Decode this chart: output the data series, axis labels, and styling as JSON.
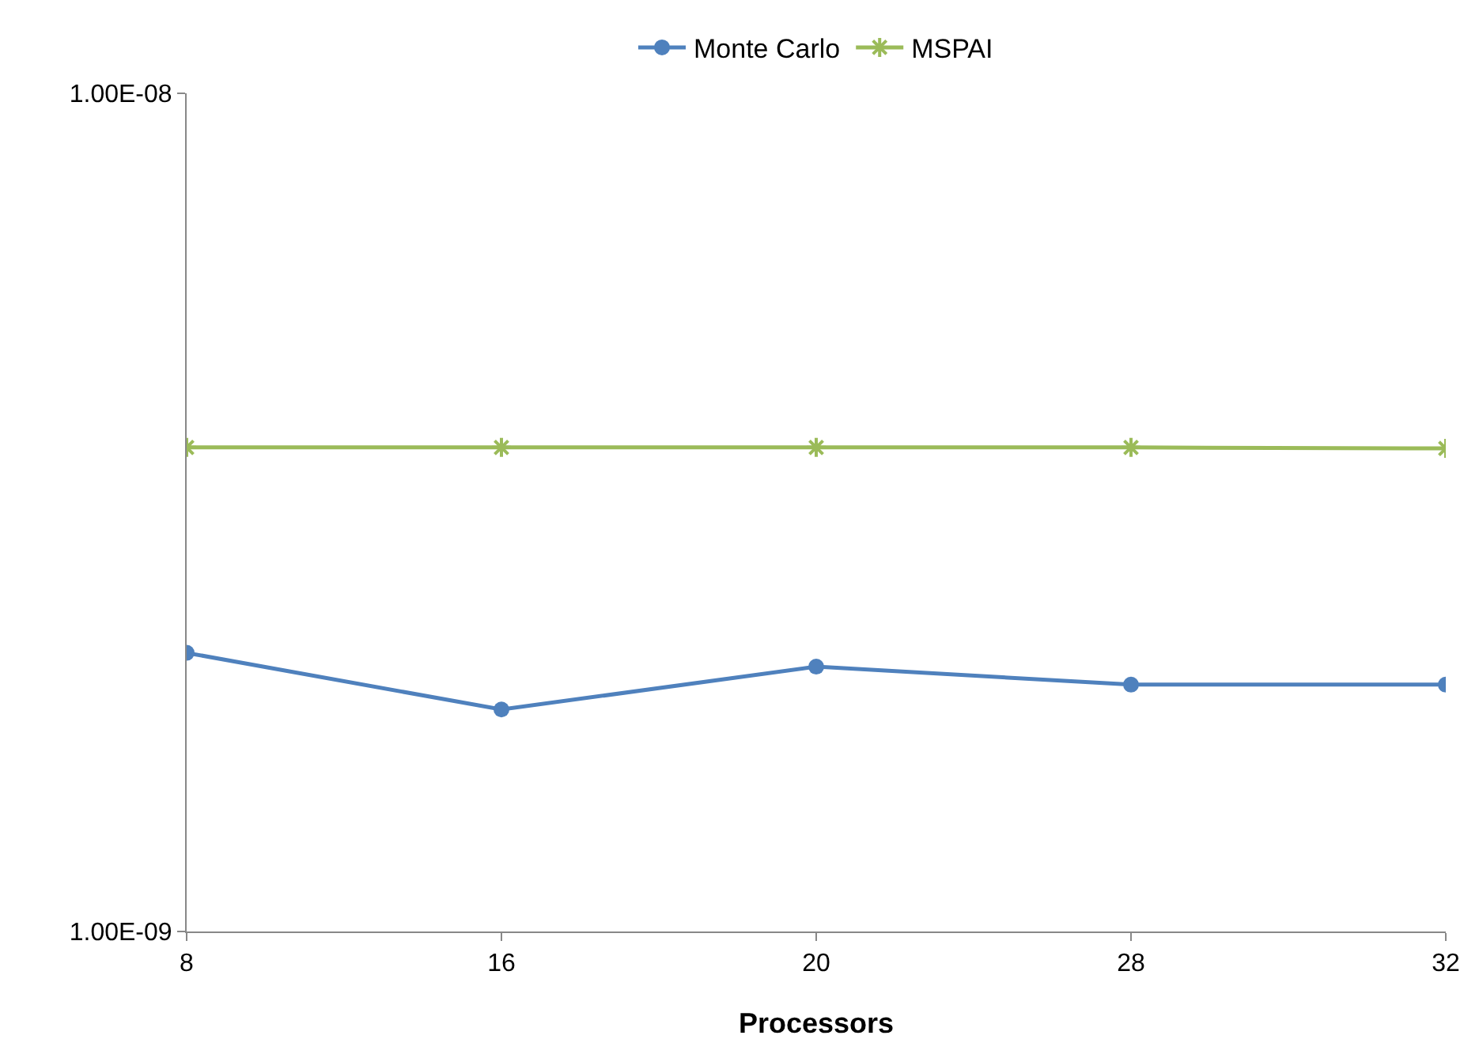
{
  "chart_data": {
    "type": "line",
    "xlabel": "Processors",
    "categories": [
      "8",
      "16",
      "20",
      "28",
      "32"
    ],
    "series": [
      {
        "name": "Monte Carlo",
        "color": "#4f81bd",
        "marker": "circle",
        "values": [
          2.15e-09,
          1.84e-09,
          2.07e-09,
          1.97e-09,
          1.97e-09
        ]
      },
      {
        "name": "MSPAI",
        "color": "#9bbb59",
        "marker": "cross",
        "values": [
          3.78e-09,
          3.78e-09,
          3.78e-09,
          3.78e-09,
          3.77e-09
        ]
      }
    ],
    "log": true,
    "ylim": [
      1e-09,
      1e-08
    ],
    "yticks": [
      {
        "value": 1e-09,
        "label": "1.00E-09"
      },
      {
        "value": 1e-08,
        "label": "1.00E-08"
      }
    ],
    "grid": false,
    "legend": "top"
  }
}
